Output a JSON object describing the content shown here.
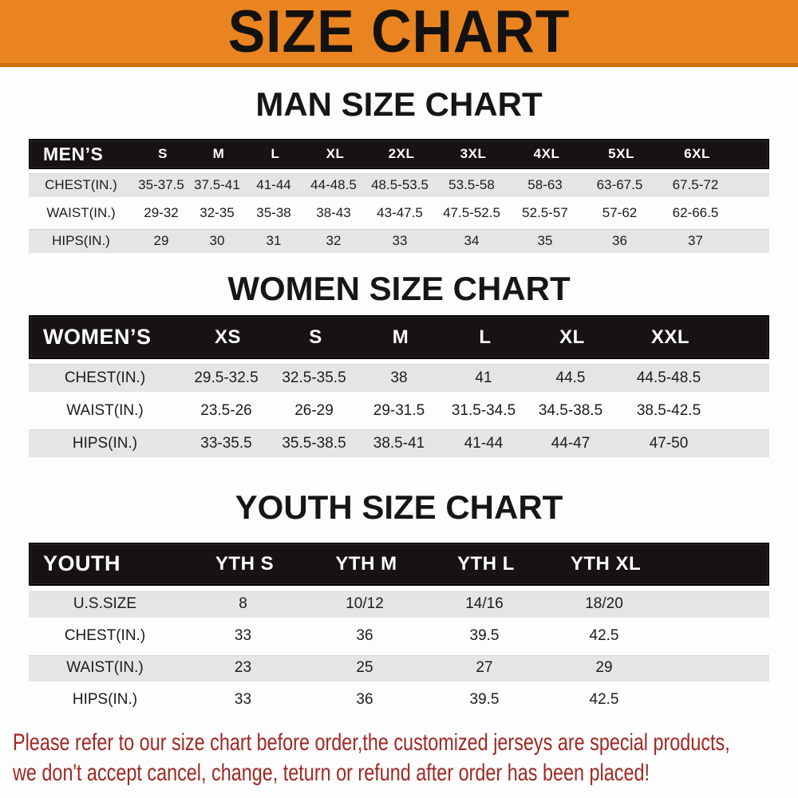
{
  "banner": {
    "title": "SIZE CHART"
  },
  "men": {
    "title": "MAN SIZE CHART",
    "header": [
      "MEN’S",
      "S",
      "M",
      "L",
      "XL",
      "2XL",
      "3XL",
      "4XL",
      "5XL",
      "6XL"
    ],
    "rows": [
      [
        "CHEST(IN.)",
        "35-37.5",
        "37.5-41",
        "41-44",
        "44-48.5",
        "48.5-53.5",
        "53.5-58",
        "58-63",
        "63-67.5",
        "67.5-72"
      ],
      [
        "WAIST(IN.)",
        "29-32",
        "32-35",
        "35-38",
        "38-43",
        "43-47.5",
        "47.5-52.5",
        "52.5-57",
        "57-62",
        "62-66.5"
      ],
      [
        "HIPS(IN.)",
        "29",
        "30",
        "31",
        "32",
        "33",
        "34",
        "35",
        "36",
        "37"
      ]
    ]
  },
  "women": {
    "title": "WOMEN SIZE CHART",
    "header": [
      "WOMEN’S",
      "XS",
      "S",
      "M",
      "L",
      "XL",
      "XXL"
    ],
    "rows": [
      [
        "CHEST(IN.)",
        "29.5-32.5",
        "32.5-35.5",
        "38",
        "41",
        "44.5",
        "44.5-48.5"
      ],
      [
        "WAIST(IN.)",
        "23.5-26",
        "26-29",
        "29-31.5",
        "31.5-34.5",
        "34.5-38.5",
        "38.5-42.5"
      ],
      [
        "HIPS(IN.)",
        "33-35.5",
        "35.5-38.5",
        "38.5-41",
        "41-44",
        "44-47",
        "47-50"
      ]
    ]
  },
  "youth": {
    "title": "YOUTH SIZE CHART",
    "header": [
      "YOUTH",
      "YTH S",
      "YTH M",
      "YTH L",
      "YTH XL"
    ],
    "rows": [
      [
        "U.S.SIZE",
        "8",
        "10/12",
        "14/16",
        "18/20"
      ],
      [
        "CHEST(IN.)",
        "33",
        "36",
        "39.5",
        "42.5"
      ],
      [
        "WAIST(IN.)",
        "23",
        "25",
        "27",
        "29"
      ],
      [
        "HIPS(IN.)",
        "33",
        "36",
        "39.5",
        "42.5"
      ]
    ]
  },
  "disclaimer": {
    "line1": "Please refer to our size chart before order,the customized jerseys are special products,",
    "line2": "we don't accept cancel, change, teturn or refund after order has been placed!"
  },
  "colors": {
    "banner_bg": "#e98420",
    "banner_border": "#cf6e11",
    "header_bar_bg": "#171313",
    "row_alt_bg": "#e5e5e5",
    "disclaimer_text": "#9e2823",
    "title_text": "#161616"
  }
}
